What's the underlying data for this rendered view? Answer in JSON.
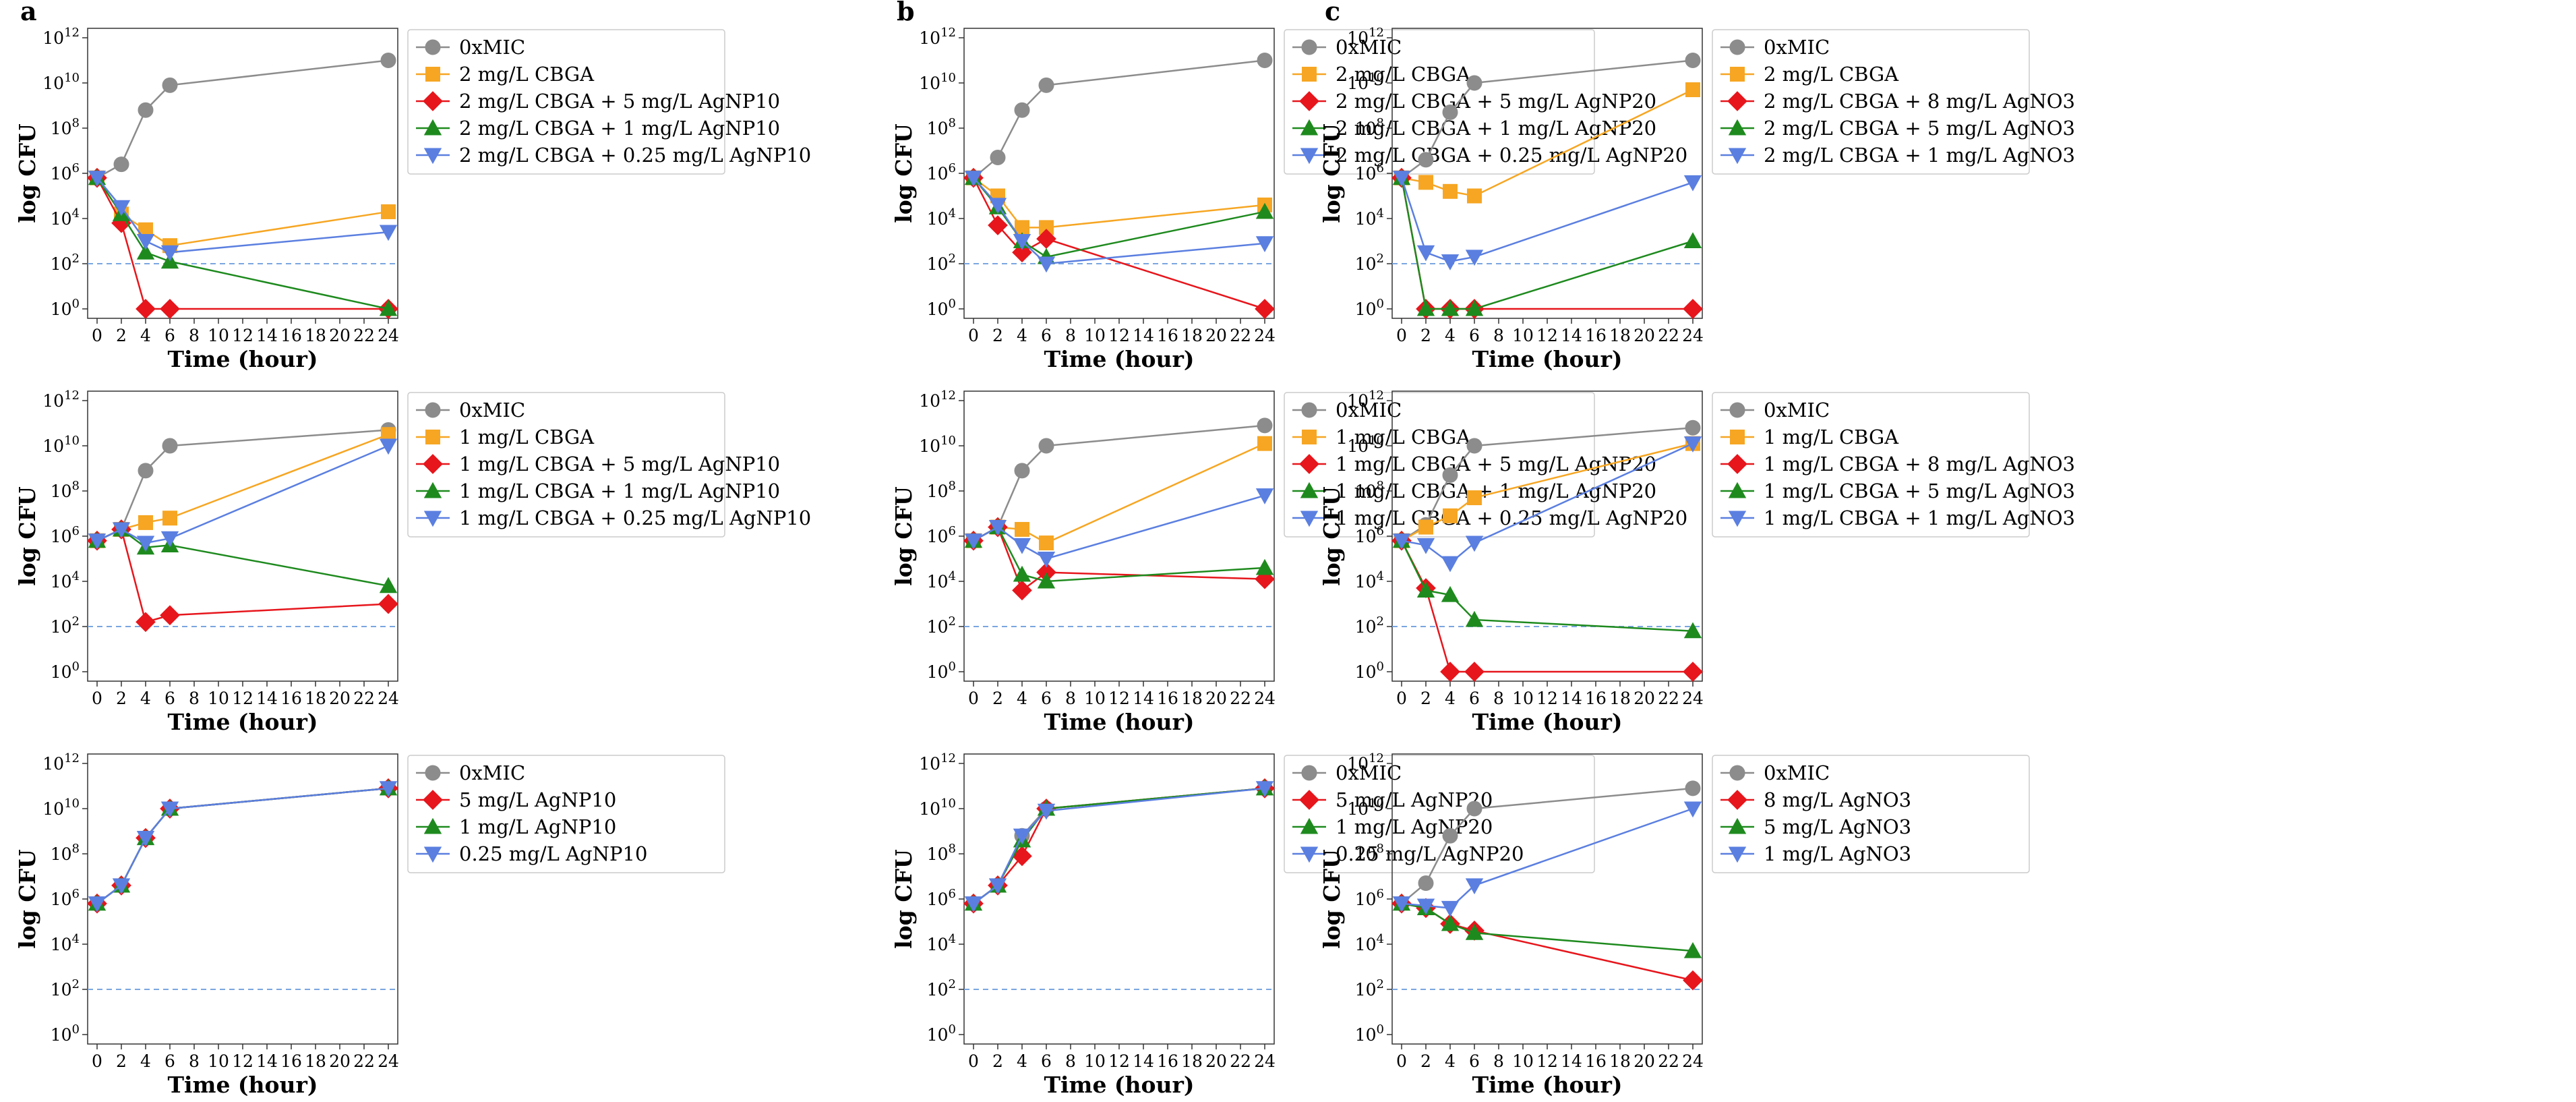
{
  "figure": {
    "panel_letters": [
      "a",
      "b",
      "c"
    ],
    "x_label": "Time (hour)",
    "y_label": "log CFU",
    "x_ticks": [
      "0",
      "2",
      "4",
      "6",
      "8",
      "10",
      "12",
      "14",
      "16",
      "18",
      "20",
      "22",
      "24"
    ],
    "y_tick_mantissa": "10",
    "y_tick_exponents": [
      "0",
      "2",
      "4",
      "6",
      "8",
      "10",
      "12"
    ],
    "colors": {
      "gray": "#8c8c8c",
      "orange": "#f6a623",
      "red": "#e6161c",
      "green": "#1e8a1e",
      "blue": "#5b7fe0",
      "threshold": "#7aa6e0"
    },
    "threshold_log": 2
  },
  "chart_data": [
    {
      "type": "line",
      "panel": "a",
      "row": 1,
      "xlabel": "Time (hour)",
      "ylabel": "log CFU",
      "xlim": [
        0,
        24
      ],
      "ylim": [
        0,
        12
      ],
      "y_scale": "log10",
      "x": [
        0,
        2,
        4,
        6,
        24
      ],
      "series": [
        {
          "name": "0xMIC",
          "color": "gray",
          "marker": "circle",
          "values": [
            5.8,
            6.4,
            8.8,
            9.9,
            11.0
          ]
        },
        {
          "name": "2 mg/L CBGA",
          "color": "orange",
          "marker": "square",
          "values": [
            5.8,
            4.2,
            3.5,
            2.8,
            4.3
          ]
        },
        {
          "name": "2 mg/L CBGA + 5 mg/L AgNP10",
          "color": "red",
          "marker": "diamond",
          "values": [
            5.8,
            3.8,
            0,
            0,
            0
          ]
        },
        {
          "name": "2 mg/L CBGA + 1 mg/L AgNP10",
          "color": "green",
          "marker": "triangle-up",
          "values": [
            5.8,
            4.2,
            2.5,
            2.1,
            0
          ]
        },
        {
          "name": "2 mg/L CBGA + 0.25 mg/L AgNP10",
          "color": "blue",
          "marker": "triangle-down",
          "values": [
            5.8,
            4.5,
            3.0,
            2.5,
            3.4
          ]
        }
      ]
    },
    {
      "type": "line",
      "panel": "b",
      "row": 1,
      "xlabel": "Time (hour)",
      "ylabel": "log CFU",
      "xlim": [
        0,
        24
      ],
      "ylim": [
        0,
        12
      ],
      "y_scale": "log10",
      "x": [
        0,
        2,
        4,
        6,
        24
      ],
      "series": [
        {
          "name": "0xMIC",
          "color": "gray",
          "marker": "circle",
          "values": [
            5.8,
            6.7,
            8.8,
            9.9,
            11.0
          ]
        },
        {
          "name": "2 mg/L CBGA",
          "color": "orange",
          "marker": "square",
          "values": [
            5.8,
            5.0,
            3.6,
            3.6,
            4.6
          ]
        },
        {
          "name": "2 mg/L CBGA + 5 mg/L AgNP20",
          "color": "red",
          "marker": "diamond",
          "values": [
            5.8,
            3.7,
            2.5,
            3.1,
            0
          ]
        },
        {
          "name": "2 mg/L CBGA + 1 mg/L AgNP20",
          "color": "green",
          "marker": "triangle-up",
          "values": [
            5.8,
            4.5,
            3.0,
            2.3,
            4.3
          ]
        },
        {
          "name": "2 mg/L CBGA + 0.25 mg/L AgNP20",
          "color": "blue",
          "marker": "triangle-down",
          "values": [
            5.8,
            4.6,
            3.0,
            2.0,
            2.9
          ]
        }
      ]
    },
    {
      "type": "line",
      "panel": "c",
      "row": 1,
      "xlabel": "Time (hour)",
      "ylabel": "log CFU",
      "xlim": [
        0,
        24
      ],
      "ylim": [
        0,
        12
      ],
      "y_scale": "log10",
      "x": [
        0,
        2,
        4,
        6,
        24
      ],
      "series": [
        {
          "name": "0xMIC",
          "color": "gray",
          "marker": "circle",
          "values": [
            5.8,
            6.6,
            8.7,
            10.0,
            11.0
          ]
        },
        {
          "name": "2 mg/L CBGA",
          "color": "orange",
          "marker": "square",
          "values": [
            5.8,
            5.6,
            5.2,
            5.0,
            9.7
          ]
        },
        {
          "name": "2 mg/L CBGA + 8 mg/L AgNO3",
          "color": "red",
          "marker": "diamond",
          "values": [
            5.8,
            0,
            0,
            0,
            0
          ]
        },
        {
          "name": "2 mg/L CBGA + 5 mg/L AgNO3",
          "color": "green",
          "marker": "triangle-up",
          "values": [
            5.8,
            0,
            0,
            0,
            3.0
          ]
        },
        {
          "name": "2 mg/L CBGA + 1 mg/L AgNO3",
          "color": "blue",
          "marker": "triangle-down",
          "values": [
            5.8,
            2.5,
            2.1,
            2.3,
            5.6
          ]
        }
      ]
    },
    {
      "type": "line",
      "panel": "a",
      "row": 2,
      "xlabel": "Time (hour)",
      "ylabel": "log CFU",
      "xlim": [
        0,
        24
      ],
      "ylim": [
        0,
        12
      ],
      "y_scale": "log10",
      "x": [
        0,
        2,
        4,
        6,
        24
      ],
      "series": [
        {
          "name": "0xMIC",
          "color": "gray",
          "marker": "circle",
          "values": [
            5.8,
            6.3,
            8.9,
            10.0,
            10.7
          ]
        },
        {
          "name": "1 mg/L CBGA",
          "color": "orange",
          "marker": "square",
          "values": [
            5.8,
            6.3,
            6.6,
            6.8,
            10.5
          ]
        },
        {
          "name": "1 mg/L CBGA + 5 mg/L AgNP10",
          "color": "red",
          "marker": "diamond",
          "values": [
            5.8,
            6.3,
            2.2,
            2.5,
            3.0
          ]
        },
        {
          "name": "1 mg/L CBGA + 1 mg/L AgNP10",
          "color": "green",
          "marker": "triangle-up",
          "values": [
            5.8,
            6.3,
            5.5,
            5.6,
            3.8
          ]
        },
        {
          "name": "1 mg/L CBGA + 0.25 mg/L AgNP10",
          "color": "blue",
          "marker": "triangle-down",
          "values": [
            5.8,
            6.3,
            5.7,
            5.9,
            10.0
          ]
        }
      ]
    },
    {
      "type": "line",
      "panel": "b",
      "row": 2,
      "xlabel": "Time (hour)",
      "ylabel": "log CFU",
      "xlim": [
        0,
        24
      ],
      "ylim": [
        0,
        12
      ],
      "y_scale": "log10",
      "x": [
        0,
        2,
        4,
        6,
        24
      ],
      "series": [
        {
          "name": "0xMIC",
          "color": "gray",
          "marker": "circle",
          "values": [
            5.8,
            6.4,
            8.9,
            10.0,
            10.9
          ]
        },
        {
          "name": "1 mg/L CBGA",
          "color": "orange",
          "marker": "square",
          "values": [
            5.8,
            6.4,
            6.3,
            5.7,
            10.1
          ]
        },
        {
          "name": "1 mg/L CBGA + 5 mg/L AgNP20",
          "color": "red",
          "marker": "diamond",
          "values": [
            5.8,
            6.4,
            3.6,
            4.4,
            4.1
          ]
        },
        {
          "name": "1 mg/L CBGA + 1 mg/L AgNP20",
          "color": "green",
          "marker": "triangle-up",
          "values": [
            5.8,
            6.4,
            4.3,
            4.0,
            4.6
          ]
        },
        {
          "name": "1 mg/L CBGA + 0.25 mg/L AgNP20",
          "color": "blue",
          "marker": "triangle-down",
          "values": [
            5.8,
            6.4,
            5.6,
            5.0,
            7.8
          ]
        }
      ]
    },
    {
      "type": "line",
      "panel": "c",
      "row": 2,
      "xlabel": "Time (hour)",
      "ylabel": "log CFU",
      "xlim": [
        0,
        24
      ],
      "ylim": [
        0,
        12
      ],
      "y_scale": "log10",
      "x": [
        0,
        2,
        4,
        6,
        24
      ],
      "series": [
        {
          "name": "0xMIC",
          "color": "gray",
          "marker": "circle",
          "values": [
            5.8,
            6.5,
            8.7,
            10.0,
            10.8
          ]
        },
        {
          "name": "1 mg/L CBGA",
          "color": "orange",
          "marker": "square",
          "values": [
            5.8,
            6.4,
            6.9,
            7.7,
            10.1
          ]
        },
        {
          "name": "1 mg/L CBGA + 8 mg/L AgNO3",
          "color": "red",
          "marker": "diamond",
          "values": [
            5.8,
            3.7,
            0,
            0,
            0
          ]
        },
        {
          "name": "1 mg/L CBGA + 5 mg/L AgNO3",
          "color": "green",
          "marker": "triangle-up",
          "values": [
            5.8,
            3.6,
            3.4,
            2.3,
            1.8
          ]
        },
        {
          "name": "1 mg/L CBGA + 1 mg/L AgNO3",
          "color": "blue",
          "marker": "triangle-down",
          "values": [
            5.8,
            5.6,
            4.8,
            5.7,
            10.1
          ]
        }
      ]
    },
    {
      "type": "line",
      "panel": "a",
      "row": 3,
      "xlabel": "Time (hour)",
      "ylabel": "log CFU",
      "xlim": [
        0,
        24
      ],
      "ylim": [
        0,
        12
      ],
      "y_scale": "log10",
      "x": [
        0,
        2,
        4,
        6,
        24
      ],
      "series": [
        {
          "name": "0xMIC",
          "color": "gray",
          "marker": "circle",
          "values": [
            5.8,
            6.6,
            8.7,
            10.0,
            10.9
          ]
        },
        {
          "name": "5 mg/L AgNP10",
          "color": "red",
          "marker": "diamond",
          "values": [
            5.8,
            6.6,
            8.7,
            10.0,
            10.9
          ]
        },
        {
          "name": "1 mg/L AgNP10",
          "color": "green",
          "marker": "triangle-up",
          "values": [
            5.8,
            6.6,
            8.7,
            10.0,
            10.9
          ]
        },
        {
          "name": "0.25 mg/L AgNP10",
          "color": "blue",
          "marker": "triangle-down",
          "values": [
            5.8,
            6.6,
            8.7,
            10.0,
            10.9
          ]
        }
      ]
    },
    {
      "type": "line",
      "panel": "b",
      "row": 3,
      "xlabel": "Time (hour)",
      "ylabel": "log CFU",
      "xlim": [
        0,
        24
      ],
      "ylim": [
        0,
        12
      ],
      "y_scale": "log10",
      "x": [
        0,
        2,
        4,
        6,
        24
      ],
      "series": [
        {
          "name": "0xMIC",
          "color": "gray",
          "marker": "circle",
          "values": [
            5.8,
            6.6,
            8.8,
            10.0,
            10.9
          ]
        },
        {
          "name": "5 mg/L AgNP20",
          "color": "red",
          "marker": "diamond",
          "values": [
            5.8,
            6.6,
            7.9,
            10.0,
            10.9
          ]
        },
        {
          "name": "1 mg/L AgNP20",
          "color": "green",
          "marker": "triangle-up",
          "values": [
            5.8,
            6.6,
            8.6,
            10.0,
            10.9
          ]
        },
        {
          "name": "0.25 mg/L AgNP20",
          "color": "blue",
          "marker": "triangle-down",
          "values": [
            5.8,
            6.6,
            8.8,
            9.9,
            10.9
          ]
        }
      ]
    },
    {
      "type": "line",
      "panel": "c",
      "row": 3,
      "xlabel": "Time (hour)",
      "ylabel": "log CFU",
      "xlim": [
        0,
        24
      ],
      "ylim": [
        0,
        12
      ],
      "y_scale": "log10",
      "x": [
        0,
        2,
        4,
        6,
        24
      ],
      "series": [
        {
          "name": "0xMIC",
          "color": "gray",
          "marker": "circle",
          "values": [
            5.8,
            6.7,
            8.8,
            10.0,
            10.9
          ]
        },
        {
          "name": "8 mg/L AgNO3",
          "color": "red",
          "marker": "diamond",
          "values": [
            5.8,
            5.6,
            4.9,
            4.6,
            2.4
          ]
        },
        {
          "name": "5 mg/L AgNO3",
          "color": "green",
          "marker": "triangle-up",
          "values": [
            5.8,
            5.6,
            4.9,
            4.5,
            3.7
          ]
        },
        {
          "name": "1 mg/L AgNO3",
          "color": "blue",
          "marker": "triangle-down",
          "values": [
            5.8,
            5.7,
            5.6,
            6.6,
            10.0
          ]
        }
      ]
    }
  ]
}
